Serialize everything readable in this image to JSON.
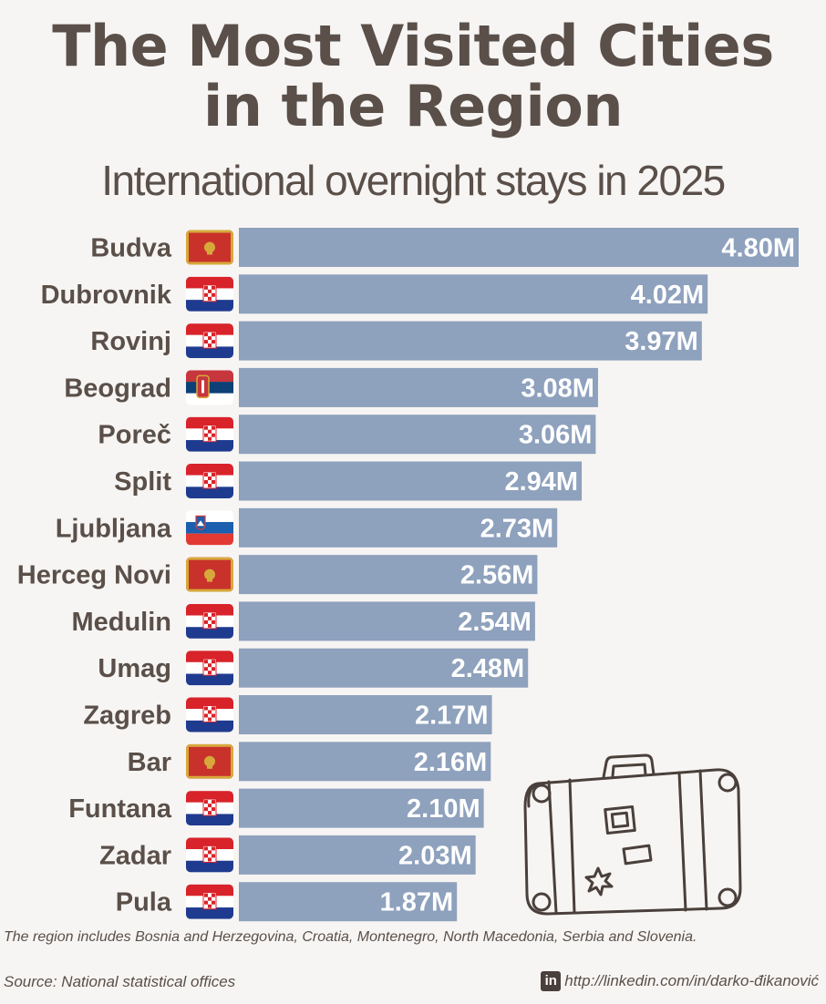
{
  "header": {
    "title_line1": "The Most Visited Cities",
    "title_line2": "in the Region",
    "subtitle": "International overnight stays in 2025"
  },
  "chart_data": {
    "type": "bar",
    "orientation": "horizontal",
    "title": "The Most Visited Cities in the Region",
    "subtitle": "International overnight stays in 2025",
    "unit": "M",
    "categories": [
      "Budva",
      "Dubrovnik",
      "Rovinj",
      "Beograd",
      "Poreč",
      "Split",
      "Ljubljana",
      "Herceg Novi",
      "Medulin",
      "Umag",
      "Zagreb",
      "Bar",
      "Funtana",
      "Zadar",
      "Pula"
    ],
    "values": [
      4.8,
      4.02,
      3.97,
      3.08,
      3.06,
      2.94,
      2.73,
      2.56,
      2.54,
      2.48,
      2.17,
      2.16,
      2.1,
      2.03,
      1.87
    ],
    "value_labels": [
      "4.80M",
      "4.02M",
      "3.97M",
      "3.08M",
      "3.06M",
      "2.94M",
      "2.73M",
      "2.56M",
      "2.54M",
      "2.48M",
      "2.17M",
      "2.16M",
      "2.10M",
      "2.03M",
      "1.87M"
    ],
    "flags": [
      "montenegro-flag-icon",
      "croatia-flag-icon",
      "croatia-flag-icon",
      "serbia-flag-icon",
      "croatia-flag-icon",
      "croatia-flag-icon",
      "slovenia-flag-icon",
      "montenegro-flag-icon",
      "croatia-flag-icon",
      "croatia-flag-icon",
      "croatia-flag-icon",
      "montenegro-flag-icon",
      "croatia-flag-icon",
      "croatia-flag-icon",
      "croatia-flag-icon"
    ],
    "bar_color": "#8ea1bd",
    "xlim": [
      0,
      4.8
    ],
    "grid": false,
    "legend": "none"
  },
  "footer": {
    "note": "The region includes Bosnia and Herzegovina, Croatia, Montenegro, North Macedonia, Serbia and Slovenia.",
    "source": "Source: National statistical offices",
    "linkedin_icon": "linkedin-icon",
    "linkedin_badge": "in",
    "credit": "http://linkedin.com/in/darko-đikanović"
  },
  "decoration": {
    "icon": "suitcase-icon"
  }
}
